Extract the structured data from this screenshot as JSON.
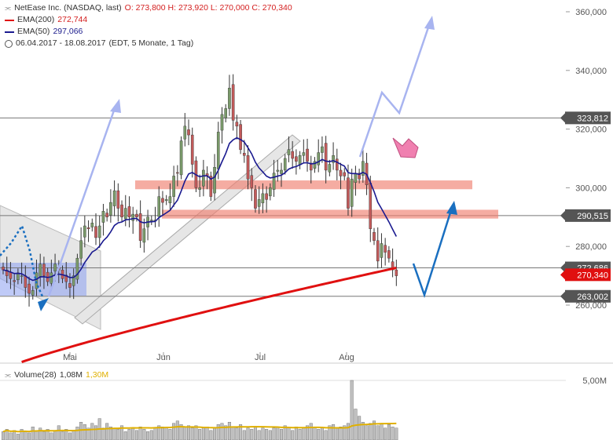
{
  "header": {
    "title": "NetEase Inc. (NASDAQ, last)",
    "ohlc": "O: 273,800  H: 273,920  L: 270,000  C: 270,340",
    "ema200_label": "EMA(200)",
    "ema200_value": "272,744",
    "ema50_label": "EMA(50)",
    "ema50_value": "297,066",
    "range": "06.04.2017 - 18.08.2017",
    "range_info": "(EDT, 5 Monate, 1 Tag)"
  },
  "volume_legend": {
    "label": "Volume(28)",
    "value": "1,08M",
    "avg": "1,30M"
  },
  "colors": {
    "up": "#7a9a6a",
    "down": "#c25a5a",
    "ema200": "#e01010",
    "ema50": "#1a1a90",
    "zone": "#f08070",
    "arrow_light": "#a8b4f0",
    "arrow_dark": "#1a6fc0",
    "arrow_pink": "#f080b0",
    "channel": "#c8c8c8",
    "label_box": "#555555",
    "volume": "#c0c0c0",
    "volume_avg": "#e0b000"
  },
  "chart_data": {
    "type": "candlestick",
    "y_axis_ticks": [
      "360,000",
      "340,000",
      "320,000",
      "300,000",
      "280,000",
      "260,000"
    ],
    "y_tick_values": [
      360,
      340,
      320,
      300,
      280,
      260
    ],
    "ylim": [
      245,
      365
    ],
    "x_ticks": [
      "Mai",
      "Jun",
      "Jul",
      "Aug"
    ],
    "horizontal_levels": [
      {
        "value": 323.812,
        "label": "323,812"
      },
      {
        "value": 290.515,
        "label": "290,515"
      },
      {
        "value": 272.686,
        "label": "272,686"
      },
      {
        "value": 263.002,
        "label": "263,002"
      }
    ],
    "last_price_label": "270,340",
    "last_price": 270.34,
    "resistance_zones": [
      {
        "from": 299.5,
        "to": 302.5
      },
      {
        "from": 289.5,
        "to": 292.5
      }
    ],
    "close": [
      272,
      270,
      269,
      268,
      271,
      270,
      266,
      264,
      265,
      271,
      274,
      270,
      268,
      271,
      274,
      272,
      269,
      268,
      266,
      270,
      276,
      282,
      287,
      286,
      288,
      283,
      287,
      292,
      290,
      295,
      299,
      293,
      290,
      293,
      290,
      291,
      290,
      282,
      286,
      290,
      289,
      289,
      297,
      295,
      296,
      297,
      304,
      305,
      316,
      321,
      318,
      308,
      300,
      300,
      306,
      304,
      297,
      307,
      319,
      325,
      327,
      334,
      323,
      321,
      313,
      311,
      303,
      300,
      293,
      296,
      298,
      296,
      300,
      305,
      306,
      306,
      310,
      313,
      310,
      309,
      311,
      312,
      309,
      306,
      309,
      312,
      314,
      306,
      308,
      311,
      306,
      304,
      304,
      293,
      303,
      305,
      303,
      309,
      301,
      286,
      282,
      275,
      281,
      278,
      276,
      272,
      270
    ],
    "volume_axis_ticks": [
      "5,00M"
    ],
    "volume_k": [
      0.7,
      0.9,
      0.6,
      0.8,
      0.5,
      0.9,
      0.7,
      0.6,
      1.1,
      0.8,
      1.0,
      0.7,
      0.9,
      0.6,
      0.8,
      1.2,
      0.7,
      0.9,
      0.6,
      0.8,
      1.1,
      1.5,
      1.3,
      1.0,
      1.4,
      1.2,
      1.8,
      1.0,
      1.4,
      1.1,
      1.0,
      0.9,
      1.2,
      0.7,
      0.9,
      1.0,
      0.8,
      1.1,
      0.9,
      0.7,
      0.8,
      1.0,
      1.2,
      1.1,
      1.0,
      0.9,
      1.4,
      1.6,
      1.3,
      1.1,
      1.2,
      1.0,
      1.2,
      0.9,
      1.0,
      1.1,
      0.8,
      1.0,
      1.3,
      1.4,
      1.2,
      1.5,
      1.1,
      1.0,
      1.3,
      0.8,
      1.0,
      0.9,
      1.1,
      0.8,
      1.0,
      0.9,
      0.8,
      1.0,
      1.1,
      0.9,
      1.2,
      1.0,
      0.8,
      1.1,
      0.9,
      1.0,
      1.2,
      1.4,
      1.1,
      0.9,
      1.0,
      0.8,
      1.2,
      1.3,
      1.0,
      1.1,
      1.2,
      1.4,
      5.0,
      2.6,
      2.0,
      1.5,
      1.2,
      1.4,
      1.6,
      1.2,
      1.4,
      1.0,
      1.3,
      1.1,
      1.0
    ]
  }
}
